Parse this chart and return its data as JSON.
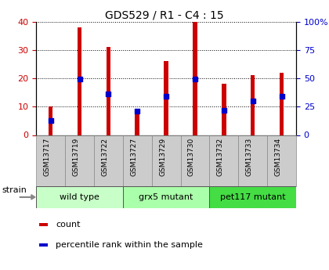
{
  "title": "GDS529 / R1 - C4 : 15",
  "samples": [
    "GSM13717",
    "GSM13719",
    "GSM13722",
    "GSM13727",
    "GSM13729",
    "GSM13730",
    "GSM13732",
    "GSM13733",
    "GSM13734"
  ],
  "counts": [
    10,
    38,
    31,
    9,
    26,
    40,
    18,
    21,
    22
  ],
  "percentile_ranks": [
    13,
    49,
    36,
    21,
    34,
    49,
    22,
    30,
    34
  ],
  "groups": [
    {
      "label": "wild type",
      "start": 0,
      "end": 3,
      "color": "#c8ffc8"
    },
    {
      "label": "grx5 mutant",
      "start": 3,
      "end": 6,
      "color": "#aaffaa"
    },
    {
      "label": "pet117 mutant",
      "start": 6,
      "end": 9,
      "color": "#44dd44"
    }
  ],
  "ylim_left": [
    0,
    40
  ],
  "ylim_right": [
    0,
    100
  ],
  "yticks_left": [
    0,
    10,
    20,
    30,
    40
  ],
  "yticks_right": [
    0,
    25,
    50,
    75,
    100
  ],
  "left_tick_color": "#cc0000",
  "right_tick_color": "#0000cc",
  "bar_color": "#cc0000",
  "dot_color": "#0000cc",
  "tick_area_color": "#cccccc",
  "strain_label": "strain",
  "legend_count_label": "count",
  "legend_percentile_label": "percentile rank within the sample",
  "bar_width": 0.15,
  "dot_size": 18
}
